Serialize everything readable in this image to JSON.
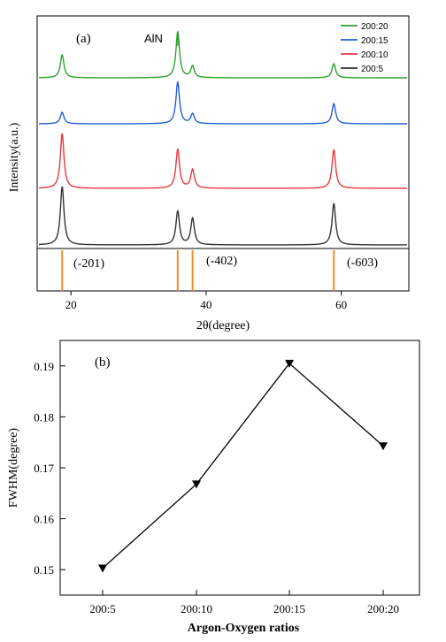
{
  "chart_data": [
    {
      "type": "line",
      "panel_label": "(a)",
      "xlabel": "2θ(degree)",
      "ylabel": "Intensity(a.u.)",
      "xlim": [
        15,
        70
      ],
      "xticks": [
        20,
        40,
        60
      ],
      "legend_position": "top-right",
      "annotation": "AlN",
      "series": [
        {
          "name": "200:20",
          "color": "#2ca02c",
          "peaks": [
            {
              "x": 18.7,
              "h": 26
            },
            {
              "x": 35.8,
              "h": 52
            },
            {
              "x": 38.0,
              "h": 13
            },
            {
              "x": 58.9,
              "h": 16
            }
          ]
        },
        {
          "name": "200:15",
          "color": "#1f5fd6",
          "peaks": [
            {
              "x": 18.7,
              "h": 13
            },
            {
              "x": 35.8,
              "h": 47
            },
            {
              "x": 38.0,
              "h": 11
            },
            {
              "x": 58.9,
              "h": 23
            }
          ]
        },
        {
          "name": "200:10",
          "color": "#e8383d",
          "peaks": [
            {
              "x": 18.7,
              "h": 62
            },
            {
              "x": 35.8,
              "h": 44
            },
            {
              "x": 38.0,
              "h": 21
            },
            {
              "x": 58.9,
              "h": 44
            }
          ]
        },
        {
          "name": "200:5",
          "color": "#333333",
          "peaks": [
            {
              "x": 18.7,
              "h": 66
            },
            {
              "x": 35.8,
              "h": 38
            },
            {
              "x": 38.0,
              "h": 30
            },
            {
              "x": 58.9,
              "h": 47
            }
          ]
        }
      ],
      "reference_peaks": [
        {
          "x": 18.7,
          "label": "(-201)"
        },
        {
          "x": 35.8,
          "label": ""
        },
        {
          "x": 38.0,
          "label": "(-402)"
        },
        {
          "x": 58.9,
          "label": "(-603)"
        }
      ],
      "reference_color": "#f28c28"
    },
    {
      "type": "line",
      "panel_label": "(b)",
      "xlabel": "Argon-Oxygen ratios",
      "ylabel": "FWHM(degree)",
      "categories": [
        "200:5",
        "200:10",
        "200:15",
        "200:20"
      ],
      "values": [
        0.1503,
        0.1668,
        0.1905,
        0.1743
      ],
      "ylim": [
        0.145,
        0.195
      ],
      "yticks": [
        "0.15",
        "0.16",
        "0.17",
        "0.18",
        "0.19"
      ],
      "marker": "down-triangle",
      "color": "#000000"
    }
  ]
}
